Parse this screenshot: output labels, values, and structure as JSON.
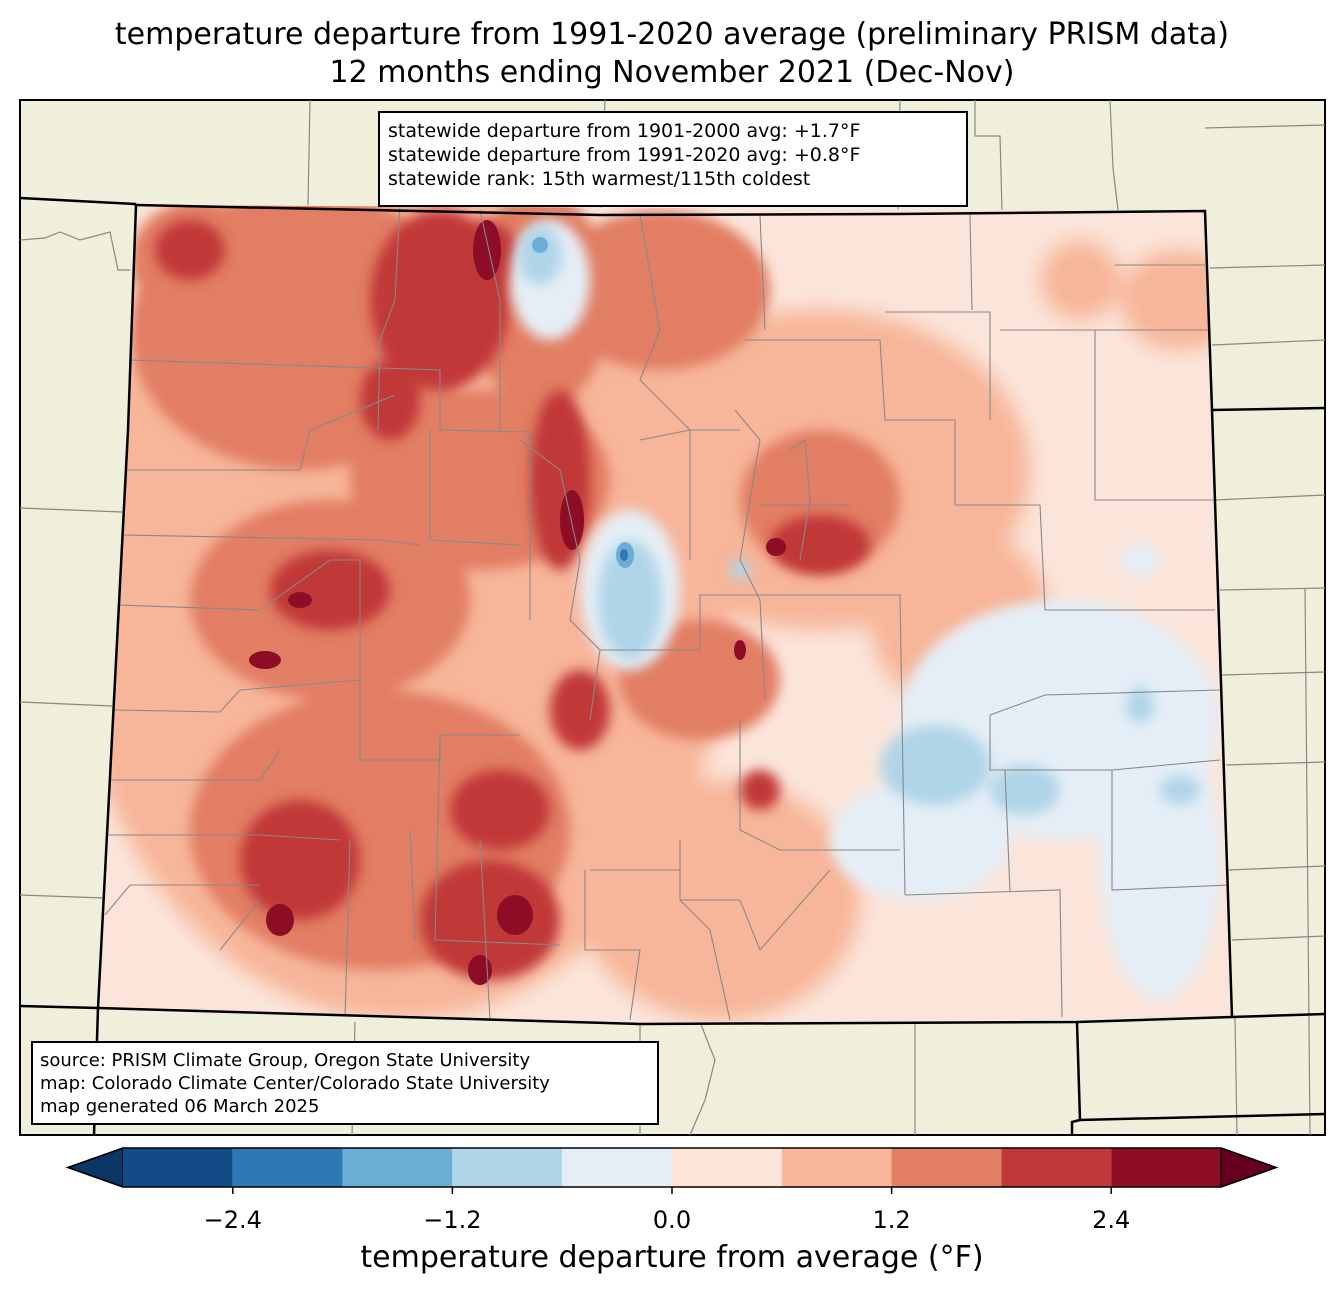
{
  "title": {
    "line1": "temperature departure from 1991-2020 average (preliminary PRISM data)",
    "line2": "12 months ending November 2021 (Dec-Nov)"
  },
  "stats_box": {
    "line1": "statewide departure from 1901-2000 avg: +1.7°F",
    "line2": "statewide departure from 1991-2020 avg: +0.8°F",
    "line3": "statewide rank: 15th warmest/115th coldest"
  },
  "source_box": {
    "line1": "source: PRISM Climate Group, Oregon State University",
    "line2": "map: Colorado Climate Center/Colorado State University",
    "line3": "map generated 06 March 2025"
  },
  "colorbar": {
    "label": "temperature departure from average (°F)",
    "ticks": [
      "−2.4",
      "−1.2",
      "0.0",
      "1.2",
      "2.4"
    ],
    "tick_values": [
      -2.4,
      -1.2,
      0.0,
      1.2,
      2.4
    ],
    "bounds": [
      -3.0,
      3.0
    ],
    "step": 0.6,
    "colors": [
      "#0a3766",
      "#134b87",
      "#2e79b5",
      "#6aaed6",
      "#b0d5e8",
      "#e5eef6",
      "#fbe5da",
      "#f7b599",
      "#e27e64",
      "#c13838",
      "#8c0d25",
      "#67001f"
    ]
  },
  "colors": {
    "land_outside": "#efefdc",
    "state_border": "#000000",
    "county_border": "#888888"
  }
}
